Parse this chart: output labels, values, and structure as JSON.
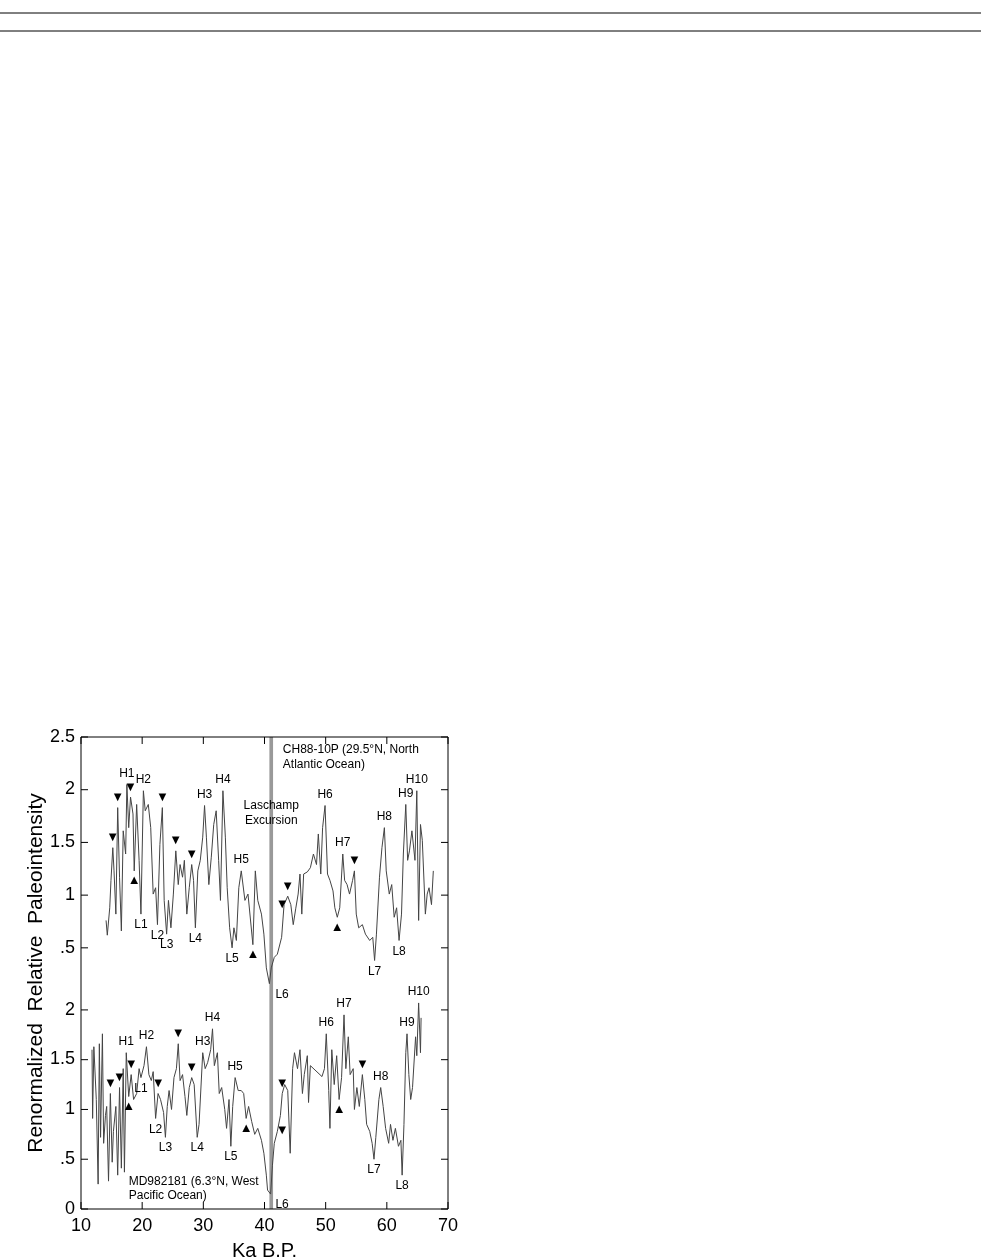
{
  "chart_data": [
    {
      "type": "line",
      "ylabel": "Renormalized  Relative  Paleointensity",
      "xlim": [
        10,
        70
      ],
      "xticks": [
        10,
        20,
        30,
        40,
        50,
        60,
        70
      ],
      "ylim": [
        0.1,
        2.5
      ],
      "yticks": [
        {
          "value": 0.5,
          "label": ".5"
        },
        1,
        1.5,
        2,
        2.5
      ],
      "tick_labels": "y",
      "marker": "none",
      "line_style": "solid",
      "series": [
        {
          "color": "#444444",
          "x": [
            14.1,
            14.3,
            14.7,
            14.9,
            15.2,
            15.4,
            15.7,
            16.0,
            16.3,
            16.6,
            16.9,
            17.3,
            17.5,
            17.8,
            18.1,
            18.5,
            18.7,
            19.1,
            19.5,
            19.8,
            20.2,
            20.5,
            21.0,
            21.4,
            21.8,
            22.2,
            22.5,
            22.9,
            23.3,
            23.6,
            24.0,
            24.3,
            24.7,
            25.1,
            25.5,
            25.9,
            26.2,
            26.6,
            26.9,
            27.3,
            27.7,
            28.1,
            28.4,
            28.7,
            29.1,
            29.5,
            29.9,
            30.2,
            30.5,
            30.9,
            31.3,
            31.7,
            32.1,
            32.5,
            32.8,
            33.2,
            33.6,
            33.9,
            34.3,
            34.7,
            35.0,
            35.4,
            35.8,
            36.2,
            36.8,
            37.3,
            38.1,
            38.5,
            38.9,
            39.5,
            39.9,
            40.3,
            40.8,
            41.1,
            41.6,
            42.1,
            42.8,
            43.2,
            43.8,
            44.3,
            44.7,
            45.1,
            45.5,
            45.8,
            46.1,
            46.4,
            47.0,
            47.5,
            48.0,
            48.5,
            48.8,
            49.2,
            49.5,
            49.9,
            50.3,
            50.7,
            51.2,
            51.5,
            51.9,
            52.3,
            52.8,
            53.1,
            53.5,
            53.9,
            54.4,
            54.7,
            55.0,
            55.4,
            56.0,
            56.5,
            57.2,
            57.7,
            58.0,
            58.3,
            58.8,
            59.2,
            59.6,
            59.9,
            60.4,
            60.8,
            61.2,
            61.6,
            62.0,
            62.4,
            62.7,
            63.1,
            63.4,
            63.7,
            64.1,
            64.6,
            64.9,
            65.2,
            65.5,
            65.8,
            66.3,
            66.6,
            66.9,
            67.3,
            67.6
          ],
          "values": [
            0.76,
            0.62,
            0.88,
            1.14,
            1.45,
            1.23,
            0.82,
            1.83,
            1.17,
            0.66,
            1.61,
            1.39,
            2.05,
            1.64,
            1.93,
            1.77,
            1.23,
            1.86,
            1.33,
            0.82,
            1.99,
            1.8,
            1.86,
            1.64,
            1.01,
            1.07,
            0.72,
            1.48,
            1.83,
            0.95,
            0.63,
            0.95,
            0.69,
            1.01,
            1.42,
            1.1,
            1.29,
            1.17,
            1.33,
            0.82,
            1.07,
            1.29,
            1.14,
            0.69,
            1.23,
            1.33,
            1.55,
            1.85,
            1.55,
            1.1,
            1.36,
            1.67,
            1.8,
            1.33,
            0.95,
            1.99,
            1.55,
            1.07,
            0.69,
            0.5,
            0.69,
            0.57,
            1.07,
            1.23,
            0.95,
            1.01,
            0.53,
            1.23,
            0.95,
            0.82,
            0.63,
            0.31,
            0.16,
            0.31,
            0.41,
            0.44,
            0.6,
            0.91,
            0.99,
            0.91,
            0.72,
            0.87,
            1.01,
            1.2,
            0.82,
            1.2,
            1.22,
            1.26,
            1.39,
            1.29,
            1.58,
            1.2,
            1.64,
            1.85,
            1.2,
            1.14,
            1.04,
            0.88,
            0.79,
            0.88,
            1.39,
            1.14,
            1.1,
            1.01,
            1.14,
            1.23,
            0.82,
            0.69,
            0.72,
            0.63,
            0.57,
            0.6,
            0.38,
            0.63,
            1.17,
            1.45,
            1.64,
            1.23,
            1.01,
            1.1,
            0.79,
            0.88,
            0.57,
            0.82,
            1.39,
            1.86,
            1.33,
            1.42,
            1.61,
            1.33,
            1.99,
            0.76,
            1.67,
            1.52,
            0.82,
            1.01,
            1.07,
            0.91,
            1.23
          ]
        }
      ],
      "bands": [
        {
          "axis": "x",
          "from": 40.8,
          "to": 41.4,
          "color": "#999999",
          "label": "Laschamp Excursion"
        }
      ],
      "annotations": [
        "CH88-10P (29.5°N, North Atlantic Ocean)",
        {
          "text": "H1",
          "x": 17.5,
          "y": 2.05
        },
        {
          "text": "H2",
          "x": 20.2,
          "y": 1.99
        },
        {
          "text": "H3",
          "x": 30.2,
          "y": 1.85
        },
        {
          "text": "H4",
          "x": 33.2,
          "y": 1.99
        },
        {
          "text": "H5",
          "x": 36.2,
          "y": 1.23
        },
        {
          "text": "H6",
          "x": 49.9,
          "y": 1.85
        },
        {
          "text": "H7",
          "x": 52.8,
          "y": 1.39
        },
        {
          "text": "H8",
          "x": 59.6,
          "y": 1.64
        },
        {
          "text": "H9",
          "x": 63.1,
          "y": 1.86
        },
        {
          "text": "H10",
          "x": 64.9,
          "y": 1.99
        },
        {
          "text": "L1",
          "x": 19.8,
          "y": 0.82
        },
        {
          "text": "L2",
          "x": 22.5,
          "y": 0.72
        },
        {
          "text": "L3",
          "x": 24.0,
          "y": 0.63
        },
        {
          "text": "L4",
          "x": 28.7,
          "y": 0.69
        },
        {
          "text": "L5",
          "x": 34.7,
          "y": 0.5
        },
        {
          "text": "L6",
          "x": 40.8,
          "y": 0.16
        },
        {
          "text": "L7",
          "x": 58.0,
          "y": 0.38
        },
        {
          "text": "L8",
          "x": 62.0,
          "y": 0.57
        },
        {
          "text": "▼",
          "x": 15.2,
          "y": 1.45
        },
        {
          "text": "▼",
          "x": 16.0,
          "y": 1.83
        },
        {
          "text": "▼",
          "x": 18.1,
          "y": 1.93
        },
        {
          "text": "▼",
          "x": 23.3,
          "y": 1.83
        },
        {
          "text": "▼",
          "x": 25.5,
          "y": 1.42
        },
        {
          "text": "▼",
          "x": 28.1,
          "y": 1.29
        },
        {
          "text": "▼",
          "x": 39.5,
          "y": 0.82
        },
        {
          "text": "▼",
          "x": 43.8,
          "y": 0.99
        },
        {
          "text": "▼",
          "x": 54.7,
          "y": 1.23
        },
        {
          "text": "▲",
          "x": 18.7,
          "y": 1.23
        },
        {
          "text": "▲",
          "x": 38.1,
          "y": 0.53
        },
        {
          "text": "▲",
          "x": 51.9,
          "y": 0.79
        }
      ]
    },
    {
      "type": "line",
      "xlabel": "Ka B.P.",
      "xlim": [
        10,
        70
      ],
      "xticks": [
        10,
        20,
        30,
        40,
        50,
        60,
        70
      ],
      "ylim": [
        0,
        2.2
      ],
      "yticks": [
        0,
        {
          "value": 0.5,
          "label": ".5"
        },
        1,
        1.5,
        2
      ],
      "marker": "none",
      "line_style": "solid",
      "series": [
        {
          "color": "#444444",
          "x": [
            11.8,
            11.9,
            12.1,
            12.5,
            12.8,
            13.0,
            13.2,
            13.5,
            13.7,
            14.0,
            14.2,
            14.5,
            14.8,
            15.1,
            15.3,
            15.7,
            16.0,
            16.3,
            16.6,
            16.9,
            17.1,
            17.4,
            17.8,
            18.2,
            18.6,
            19.1,
            19.5,
            19.8,
            20.3,
            20.7,
            21.1,
            21.5,
            21.8,
            22.2,
            22.6,
            23.0,
            23.5,
            23.8,
            24.1,
            24.4,
            24.8,
            25.2,
            25.6,
            25.9,
            26.2,
            26.6,
            27.0,
            27.3,
            27.7,
            28.1,
            28.5,
            29.0,
            29.3,
            29.9,
            30.3,
            30.7,
            31.2,
            31.5,
            31.8,
            32.3,
            32.6,
            33.0,
            33.5,
            33.8,
            34.2,
            34.5,
            34.8,
            35.2,
            35.7,
            36.2,
            36.6,
            37.0,
            37.4,
            37.9,
            38.4,
            38.9,
            39.5,
            39.9,
            40.3,
            40.5,
            41.0,
            41.3,
            41.6,
            42.1,
            42.6,
            42.9,
            43.3,
            43.8,
            44.2,
            44.6,
            44.9,
            45.4,
            45.8,
            46.2,
            46.5,
            47.0,
            47.2,
            47.5,
            49.4,
            49.8,
            50.1,
            50.5,
            50.7,
            51.0,
            51.4,
            51.8,
            52.2,
            52.6,
            53.0,
            53.3,
            53.7,
            54.0,
            54.5,
            54.7,
            55.1,
            55.5,
            56.0,
            56.4,
            56.7,
            57.2,
            57.6,
            57.9,
            58.2,
            58.7,
            59.0,
            59.4,
            59.8,
            60.3,
            60.6,
            61.0,
            61.4,
            61.9,
            62.3,
            62.5,
            62.8,
            63.1,
            63.3,
            63.6,
            63.9,
            64.2,
            64.7,
            64.9,
            65.2,
            65.5,
            65.6
          ],
          "values": [
            1.6,
            0.91,
            1.63,
            1.1,
            0.25,
            1.66,
            0.72,
            1.76,
            0.66,
            0.94,
            1.03,
            0.28,
            1.16,
            0.47,
            0.78,
            1.03,
            0.34,
            1.22,
            0.41,
            1.41,
            0.37,
            1.57,
            1.13,
            1.35,
            1.1,
            1.16,
            1.41,
            1.32,
            1.44,
            1.63,
            1.35,
            1.29,
            1.38,
            0.91,
            1.16,
            1.1,
            0.97,
            0.72,
            1.03,
            1.19,
            1.0,
            1.32,
            1.41,
            1.66,
            1.29,
            1.35,
            1.13,
            0.94,
            1.22,
            1.32,
            1.25,
            0.72,
            0.85,
            1.57,
            1.41,
            1.47,
            1.6,
            1.81,
            1.44,
            1.57,
            1.16,
            1.22,
            1.0,
            0.81,
            1.1,
            0.63,
            1.03,
            1.32,
            1.19,
            1.19,
            1.16,
            0.91,
            1.03,
            0.88,
            0.75,
            0.81,
            0.69,
            0.56,
            0.34,
            0.19,
            0.15,
            0.44,
            0.66,
            0.78,
            0.94,
            1.16,
            1.25,
            1.19,
            0.56,
            1.41,
            1.57,
            1.41,
            1.6,
            1.16,
            1.35,
            1.54,
            1.07,
            1.44,
            1.33,
            1.41,
            1.76,
            1.19,
            0.81,
            1.6,
            1.25,
            1.54,
            1.1,
            1.32,
            1.95,
            1.41,
            1.73,
            1.35,
            1.41,
            1.0,
            1.22,
            1.03,
            1.35,
            1.1,
            0.85,
            0.78,
            0.66,
            0.5,
            0.72,
            1.1,
            1.22,
            1.03,
            0.81,
            0.66,
            0.85,
            0.69,
            0.81,
            0.63,
            0.69,
            0.34,
            0.85,
            1.57,
            1.76,
            1.35,
            1.1,
            1.22,
            1.73,
            1.54,
            2.07,
            1.57,
            1.92
          ]
        }
      ],
      "bands": [
        {
          "axis": "x",
          "from": 40.8,
          "to": 41.4,
          "color": "#999999"
        }
      ],
      "annotations": [
        "MD982181 (6.3°N, West Pacific Ocean)",
        {
          "text": "H1",
          "x": 17.4,
          "y": 1.57
        },
        {
          "text": "H2",
          "x": 20.7,
          "y": 1.63
        },
        {
          "text": "H3",
          "x": 29.9,
          "y": 1.57
        },
        {
          "text": "H4",
          "x": 31.5,
          "y": 1.81
        },
        {
          "text": "H5",
          "x": 35.2,
          "y": 1.32
        },
        {
          "text": "H6",
          "x": 50.1,
          "y": 1.76
        },
        {
          "text": "H7",
          "x": 53.0,
          "y": 1.95
        },
        {
          "text": "H8",
          "x": 59.0,
          "y": 1.22
        },
        {
          "text": "H9",
          "x": 63.3,
          "y": 1.76
        },
        {
          "text": "H10",
          "x": 65.2,
          "y": 2.07
        },
        {
          "text": "L1",
          "x": 19.8,
          "y": 1.32
        },
        {
          "text": "L2",
          "x": 22.2,
          "y": 0.91
        },
        {
          "text": "L3",
          "x": 23.8,
          "y": 0.72
        },
        {
          "text": "L4",
          "x": 29.0,
          "y": 0.72
        },
        {
          "text": "L5",
          "x": 34.5,
          "y": 0.63
        },
        {
          "text": "L6",
          "x": 41.0,
          "y": 0.15
        },
        {
          "text": "L7",
          "x": 57.9,
          "y": 0.5
        },
        {
          "text": "L8",
          "x": 62.5,
          "y": 0.34
        },
        {
          "text": "▼",
          "x": 14.8,
          "y": 1.16
        },
        {
          "text": "▼",
          "x": 16.3,
          "y": 1.22
        },
        {
          "text": "▼",
          "x": 18.2,
          "y": 1.35
        },
        {
          "text": "▼",
          "x": 22.6,
          "y": 1.16
        },
        {
          "text": "▼",
          "x": 25.9,
          "y": 1.66
        },
        {
          "text": "▼",
          "x": 28.1,
          "y": 1.32
        },
        {
          "text": "▼",
          "x": 39.5,
          "y": 0.69
        },
        {
          "text": "▼",
          "x": 42.9,
          "y": 1.16
        },
        {
          "text": "▼",
          "x": 56.0,
          "y": 1.35
        },
        {
          "text": "▲",
          "x": 17.8,
          "y": 1.13
        },
        {
          "text": "▲",
          "x": 37.0,
          "y": 0.91
        },
        {
          "text": "▲",
          "x": 52.2,
          "y": 1.1
        }
      ]
    }
  ]
}
